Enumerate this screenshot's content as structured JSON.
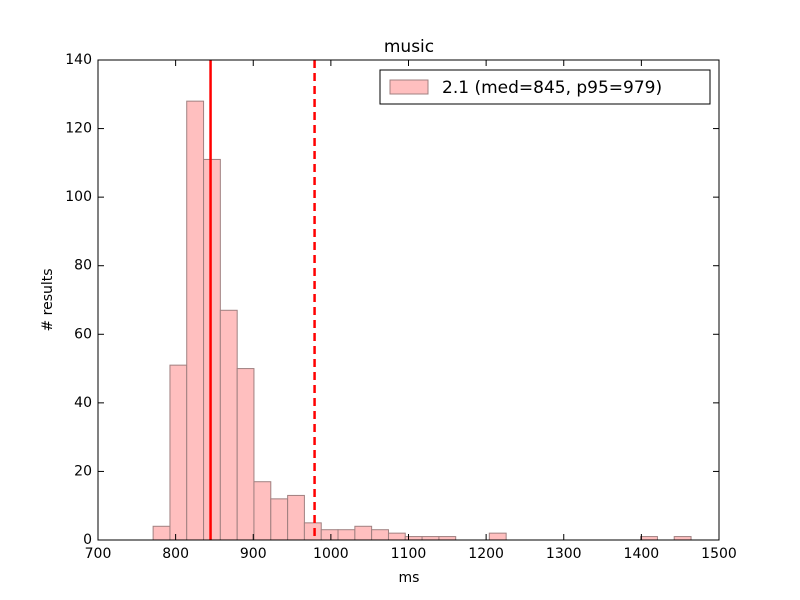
{
  "chart_data": {
    "type": "histogram",
    "title": "music",
    "x_label": "ms",
    "y_label": "# results",
    "bins": [
      771.0,
      792.7,
      814.3,
      836.0,
      857.6,
      879.3,
      900.9,
      922.6,
      944.3,
      965.9,
      987.6,
      1009.2,
      1030.9,
      1052.5,
      1074.2,
      1095.8,
      1117.5,
      1139.2,
      1160.8,
      1182.5,
      1204.1,
      1225.8,
      1247.4,
      1269.1,
      1290.8,
      1312.4,
      1334.1,
      1355.7,
      1377.4,
      1399.0,
      1420.7,
      1442.3,
      1464.0
    ],
    "series": [
      {
        "name": "2.1 (med=845, p95=979)",
        "color": "#ffbfbf",
        "edge_color": "#a08080",
        "values": [
          4,
          51,
          128,
          111,
          67,
          50,
          17,
          12,
          13,
          5,
          3,
          3,
          4,
          3,
          2,
          1,
          1,
          1,
          0,
          0,
          2,
          0,
          0,
          0,
          0,
          0,
          0,
          0,
          0,
          1,
          0,
          1
        ]
      }
    ],
    "vlines": [
      {
        "value": 845,
        "style": "solid",
        "color": "#ff0000"
      },
      {
        "value": 979,
        "style": "dashed",
        "color": "#ff0000"
      }
    ],
    "xlim": [
      700,
      1500
    ],
    "xticks": [
      700,
      800,
      900,
      1000,
      1100,
      1200,
      1300,
      1400,
      1500
    ],
    "ylim": [
      0,
      140
    ],
    "yticks": [
      0,
      20,
      40,
      60,
      80,
      100,
      120,
      140
    ],
    "legend": "upper right",
    "grid": false
  }
}
